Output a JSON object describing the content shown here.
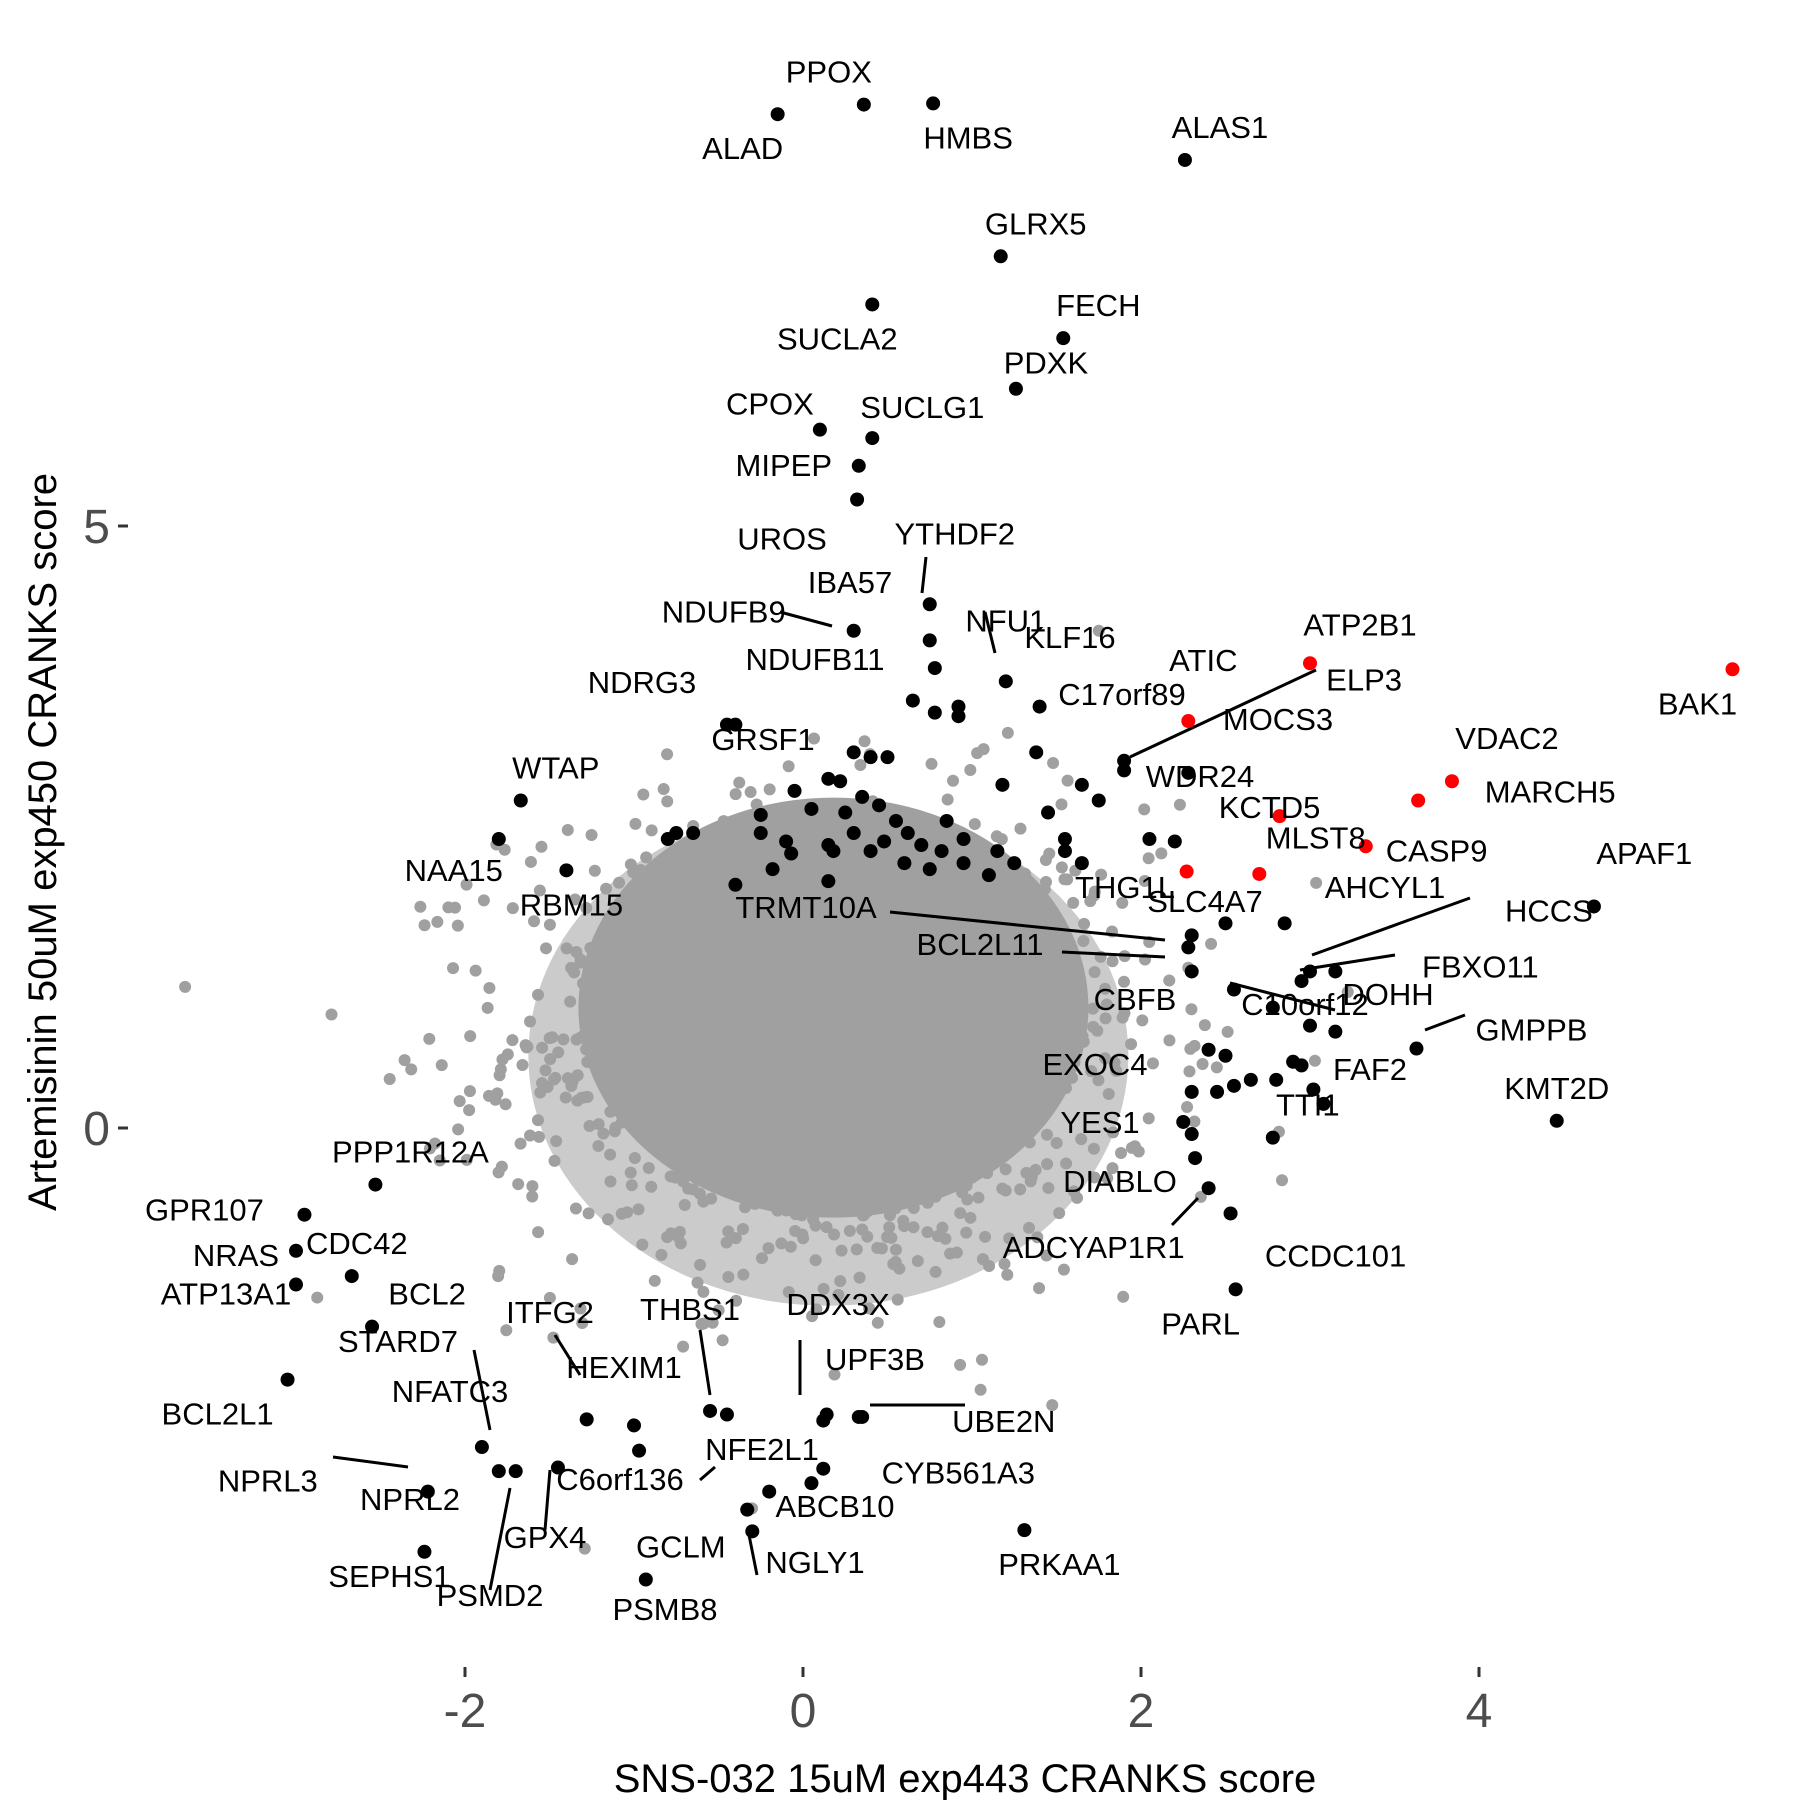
{
  "colors": {
    "background": "#ffffff",
    "base_point": "#a0a0a0",
    "highlight_point": "#000000",
    "special_point": "#ff0000",
    "tick_text": "#4d4d4d",
    "text": "#000000"
  },
  "chart_data": {
    "type": "scatter",
    "xlabel": "SNS-032 15uM exp443 CRANKS score",
    "ylabel": "Artemisinin 50uM exp450 CRANKS score",
    "xlim": [
      -3.1,
      5.7
    ],
    "ylim": [
      -4.6,
      8.6
    ],
    "x_ticks": [
      {
        "value": -2,
        "label": "-2"
      },
      {
        "value": 0,
        "label": "0"
      },
      {
        "value": 2,
        "label": "2"
      },
      {
        "value": 4,
        "label": "4"
      }
    ],
    "y_ticks": [
      {
        "value": 0,
        "label": "0"
      },
      {
        "value": 5,
        "label": "5"
      }
    ],
    "grid": false,
    "legend": "none",
    "background_cloud": {
      "description_color": "grey",
      "approximate_center": [
        0.2,
        1.0
      ],
      "note": "dense cloud of thousands of non-highlighted genes"
    },
    "labeled_genes": [
      {
        "name": "PPOX",
        "x": 0.36,
        "y": 8.5,
        "color": "black"
      },
      {
        "name": "ALAD",
        "x": -0.15,
        "y": 8.42,
        "color": "black"
      },
      {
        "name": "HMBS",
        "x": 0.77,
        "y": 8.51,
        "color": "black"
      },
      {
        "name": "ALAS1",
        "x": 2.26,
        "y": 8.04,
        "color": "black"
      },
      {
        "name": "GLRX5",
        "x": 1.17,
        "y": 7.24,
        "color": "black"
      },
      {
        "name": "SUCLA2",
        "x": 0.41,
        "y": 6.84,
        "color": "black"
      },
      {
        "name": "FECH",
        "x": 1.54,
        "y": 6.56,
        "color": "black"
      },
      {
        "name": "PDXK",
        "x": 1.26,
        "y": 6.14,
        "color": "black"
      },
      {
        "name": "CPOX",
        "x": 0.1,
        "y": 5.8,
        "color": "black"
      },
      {
        "name": "SUCLG1",
        "x": 0.41,
        "y": 5.73,
        "color": "black"
      },
      {
        "name": "MIPEP",
        "x": 0.33,
        "y": 5.5,
        "color": "black"
      },
      {
        "name": "UROS",
        "x": 0.32,
        "y": 5.22,
        "color": "black"
      },
      {
        "name": "YTHDF2",
        "x": 0.75,
        "y": 4.35,
        "color": "black"
      },
      {
        "name": "NDUFB9",
        "x": 0.3,
        "y": 4.13,
        "color": "black"
      },
      {
        "name": "NFU1",
        "x": 1.2,
        "y": 3.71,
        "color": "black"
      },
      {
        "name": "ATP2B1",
        "x": 3.0,
        "y": 3.86,
        "color": "red"
      },
      {
        "name": "BAK1",
        "x": 5.5,
        "y": 3.81,
        "color": "red"
      },
      {
        "name": "ATIC",
        "x": 2.28,
        "y": 3.38,
        "color": "red"
      },
      {
        "name": "ELP3",
        "x": 1.9,
        "y": 2.97,
        "color": "black"
      },
      {
        "name": "VDAC2",
        "x": 3.84,
        "y": 2.88,
        "color": "red"
      },
      {
        "name": "MARCH5",
        "x": 3.64,
        "y": 2.72,
        "color": "red"
      },
      {
        "name": "KCTD5",
        "x": 2.82,
        "y": 2.59,
        "color": "red"
      },
      {
        "name": "MLST8",
        "x": 3.33,
        "y": 2.34,
        "color": "red"
      },
      {
        "name": "CASP9",
        "x": 2.27,
        "y": 2.13,
        "color": "red"
      },
      {
        "name": "APAF1",
        "x": 2.7,
        "y": 2.11,
        "color": "red"
      },
      {
        "name": "WTAP",
        "x": -1.67,
        "y": 2.72,
        "color": "black"
      },
      {
        "name": "NAA15",
        "x": -1.8,
        "y": 2.4,
        "color": "black"
      },
      {
        "name": "RBM15",
        "x": -1.4,
        "y": 2.14,
        "color": "black"
      },
      {
        "name": "HCCS",
        "x": 4.68,
        "y": 1.84,
        "color": "black"
      },
      {
        "name": "FBXO11",
        "x": 3.15,
        "y": 1.3,
        "color": "black"
      },
      {
        "name": "GMPPB",
        "x": 3.63,
        "y": 0.66,
        "color": "black"
      },
      {
        "name": "KMT2D",
        "x": 4.46,
        "y": 0.06,
        "color": "black"
      },
      {
        "name": "TTI1",
        "x": 2.78,
        "y": -0.08,
        "color": "black"
      },
      {
        "name": "CCDC101",
        "x": 2.53,
        "y": -0.71,
        "color": "black"
      },
      {
        "name": "PARL",
        "x": 2.56,
        "y": -1.34,
        "color": "black"
      },
      {
        "name": "ADCYAP1R1",
        "x": 2.4,
        "y": -0.5,
        "color": "black"
      },
      {
        "name": "GPR107",
        "x": -2.95,
        "y": -0.72,
        "color": "black"
      },
      {
        "name": "NRAS",
        "x": -3.0,
        "y": -1.02,
        "color": "black"
      },
      {
        "name": "PPP1R12A",
        "x": -2.53,
        "y": -0.47,
        "color": "black"
      },
      {
        "name": "CDC42",
        "x": -2.67,
        "y": -1.23,
        "color": "black"
      },
      {
        "name": "ATP13A1",
        "x": -3.0,
        "y": -1.3,
        "color": "black"
      },
      {
        "name": "BCL2",
        "x": -2.55,
        "y": -1.65,
        "color": "black"
      },
      {
        "name": "BCL2L1",
        "x": -3.05,
        "y": -2.09,
        "color": "black"
      },
      {
        "name": "UBE2N",
        "x": 0.33,
        "y": -2.4,
        "color": "black"
      },
      {
        "name": "CYB561A3",
        "x": 0.12,
        "y": -2.83,
        "color": "black"
      },
      {
        "name": "PRKAA1",
        "x": 1.31,
        "y": -3.34,
        "color": "black"
      },
      {
        "name": "GCLM",
        "x": -0.93,
        "y": -3.75,
        "color": "black"
      },
      {
        "name": "SEPHS1",
        "x": -2.24,
        "y": -3.52,
        "color": "black"
      },
      {
        "name": "NPRL3",
        "x": -2.22,
        "y": -3.02,
        "color": "black"
      }
    ],
    "other_labels": [
      "IBA57",
      "NDUFB11",
      "NDRG3",
      "GRSF1",
      "KLF16",
      "C17orf89",
      "MOCS3",
      "WDR24",
      "THG1L",
      "AHCYL1",
      "TRMT10A",
      "SLC4A7",
      "BCL2L11",
      "DOHH",
      "CBFB",
      "C10orf12",
      "FAF2",
      "EXOC4",
      "YES1",
      "DIABLO",
      "STARD7",
      "ITFG2",
      "THBS1",
      "DDX3X",
      "HEXIM1",
      "UPF3B",
      "NFATC3",
      "NFE2L1",
      "C6orf136",
      "ABCB10",
      "NPRL2",
      "GPX4",
      "NGLY1",
      "PSMD2",
      "PSMB8"
    ]
  }
}
